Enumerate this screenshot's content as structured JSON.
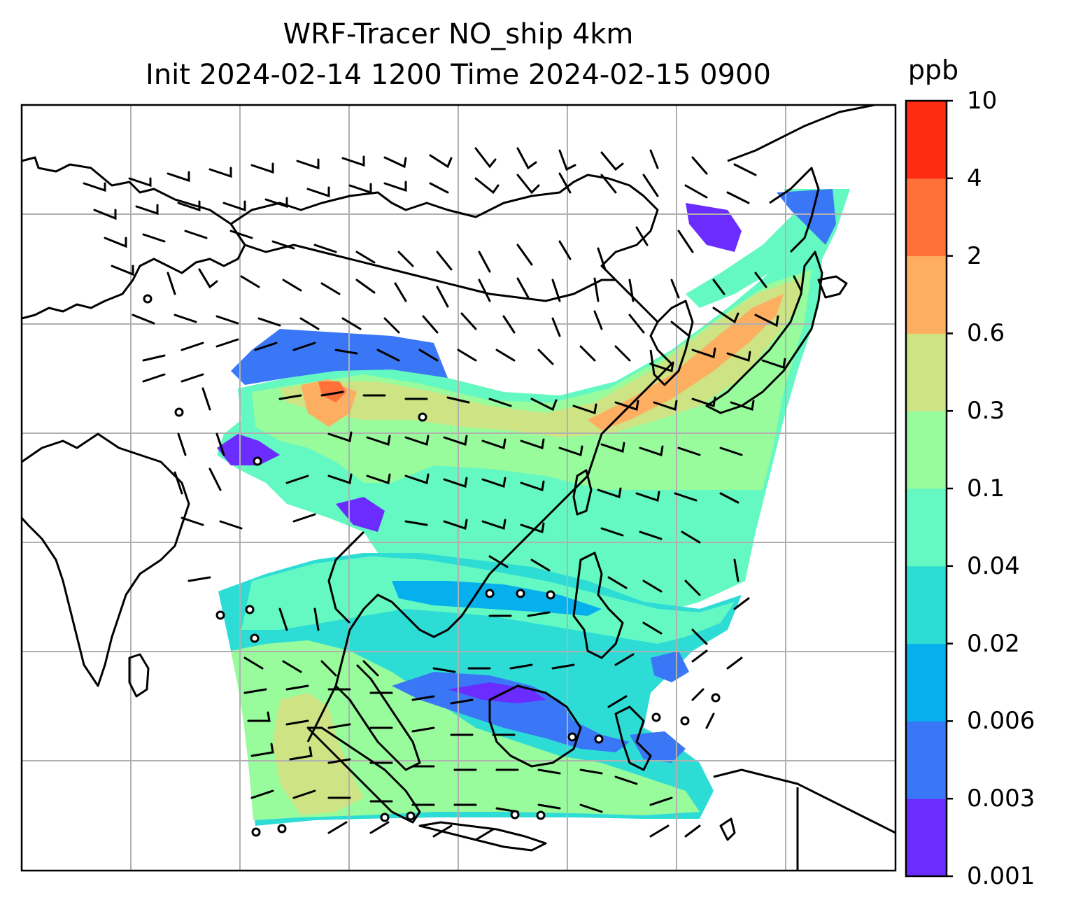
{
  "title": {
    "line1": "WRF-Tracer NO_ship 4km",
    "line2": "Init 2024-02-14 1200 Time 2024-02-15 0900"
  },
  "colorbar": {
    "unit": "ppb",
    "tick_labels": [
      "0.001",
      "0.003",
      "0.006",
      "0.02",
      "0.04",
      "0.1",
      "0.3",
      "0.6",
      "2",
      "4",
      "10"
    ],
    "colors": [
      "#6a2cff",
      "#3a77f6",
      "#06b0ec",
      "#2edcd6",
      "#64f8c2",
      "#98fb9c",
      "#cde384",
      "#feae61",
      "#ff7139",
      "#ff2c13"
    ]
  },
  "map": {
    "gridlines": true,
    "coastline_color": "#000000",
    "wind_barb_color": "#000000",
    "gridline_color": "#b0b0b0"
  }
}
